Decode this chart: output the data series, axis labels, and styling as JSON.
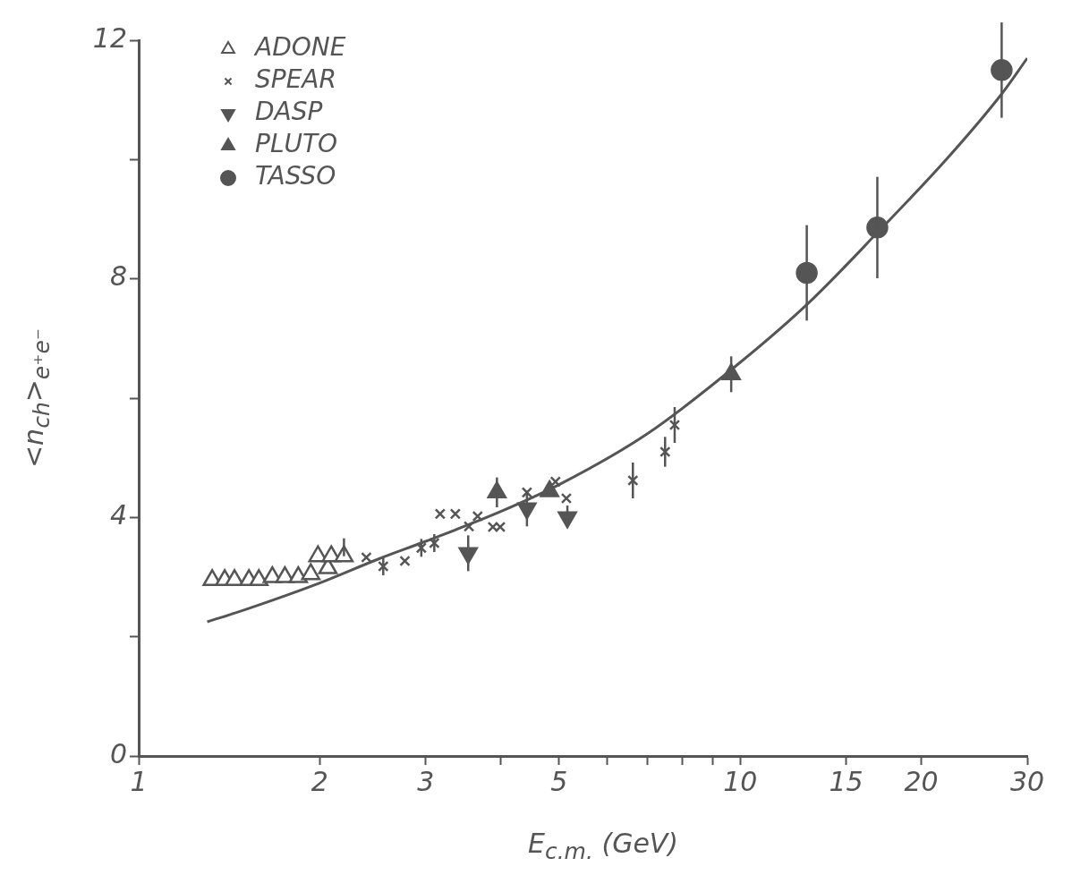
{
  "chart_data": {
    "type": "scatter",
    "xlabel": "E$_{c.m.}$ (GeV)",
    "ylabel": "<n$_{ch}$>$_{e⁺e⁻}$",
    "log": "x",
    "grid": false,
    "legend": "top left",
    "xlim": [
      1,
      30
    ],
    "xticks": [
      1,
      2,
      3,
      {
        "value": 4,
        "label": null
      },
      5,
      {
        "value": 6,
        "label": null
      },
      {
        "value": 7,
        "label": null
      },
      {
        "value": 8,
        "label": null
      },
      {
        "value": 9,
        "label": null
      },
      10,
      15,
      20,
      30
    ],
    "ylim": [
      0,
      12
    ],
    "yticks": [
      0,
      {
        "value": 2,
        "label": null
      },
      4,
      {
        "value": 6,
        "label": null
      },
      8,
      {
        "value": 10,
        "label": null
      },
      12
    ],
    "series": [
      {
        "name": "ADONE",
        "marker": "triangle-open",
        "color": "#555555",
        "x": [
          1.325,
          1.39,
          1.443,
          1.525,
          1.584,
          1.668,
          1.75,
          1.842,
          1.932,
          1.986,
          2.063,
          2.09,
          2.194
        ],
        "values": [
          2.95,
          2.95,
          2.95,
          2.95,
          2.95,
          3.0,
          3.0,
          3.0,
          3.05,
          3.35,
          3.15,
          3.35,
          3.35
        ],
        "errors": [
          null,
          null,
          null,
          null,
          null,
          null,
          null,
          null,
          null,
          null,
          null,
          null,
          [
            3.35,
            3.65
          ]
        ]
      },
      {
        "name": "SPEAR",
        "marker": "cross",
        "color": "#555555",
        "x": [
          2.39,
          2.55,
          2.77,
          2.95,
          3.1,
          3.17,
          3.36,
          3.54,
          3.66,
          3.88,
          3.99,
          4.42,
          4.93,
          5.14,
          6.63,
          7.5,
          7.78
        ],
        "values": [
          3.33,
          3.18,
          3.27,
          3.49,
          3.57,
          4.06,
          4.06,
          3.85,
          4.02,
          3.84,
          3.84,
          4.42,
          4.6,
          4.32,
          4.62,
          5.1,
          5.55
        ],
        "errors": [
          null,
          0.15,
          null,
          0.15,
          0.15,
          null,
          null,
          null,
          null,
          null,
          null,
          null,
          null,
          null,
          0.3,
          0.25,
          0.3
        ]
      },
      {
        "name": "DASP",
        "marker": "triangle-down",
        "color": "#555555",
        "x": [
          3.53,
          4.42,
          5.16
        ],
        "values": [
          3.4,
          4.15,
          4.0
        ],
        "errors": [
          0.3,
          0.3,
          [
            4.0,
            4.2
          ]
        ]
      },
      {
        "name": "PLUTO",
        "marker": "triangle",
        "color": "#555555",
        "x": [
          3.94,
          4.82,
          9.66
        ],
        "values": [
          4.42,
          4.44,
          6.4
        ],
        "errors": [
          0.25,
          null,
          0.3
        ]
      },
      {
        "name": "TASSO",
        "marker": "circle",
        "color": "#555555",
        "x": [
          12.9,
          16.9,
          27.2
        ],
        "values": [
          8.1,
          8.86,
          11.5
        ],
        "errors": [
          0.8,
          0.85,
          0.8
        ]
      },
      {
        "type": "line",
        "color": "#555555",
        "x": [
          1.3,
          1.5,
          2,
          2.5,
          3,
          4,
          5,
          7,
          10,
          13,
          17,
          22,
          27.2,
          30
        ],
        "values": [
          2.25,
          2.45,
          2.9,
          3.3,
          3.6,
          4.1,
          4.55,
          5.4,
          6.6,
          7.6,
          8.8,
          10.0,
          11.1,
          11.7
        ]
      }
    ]
  }
}
